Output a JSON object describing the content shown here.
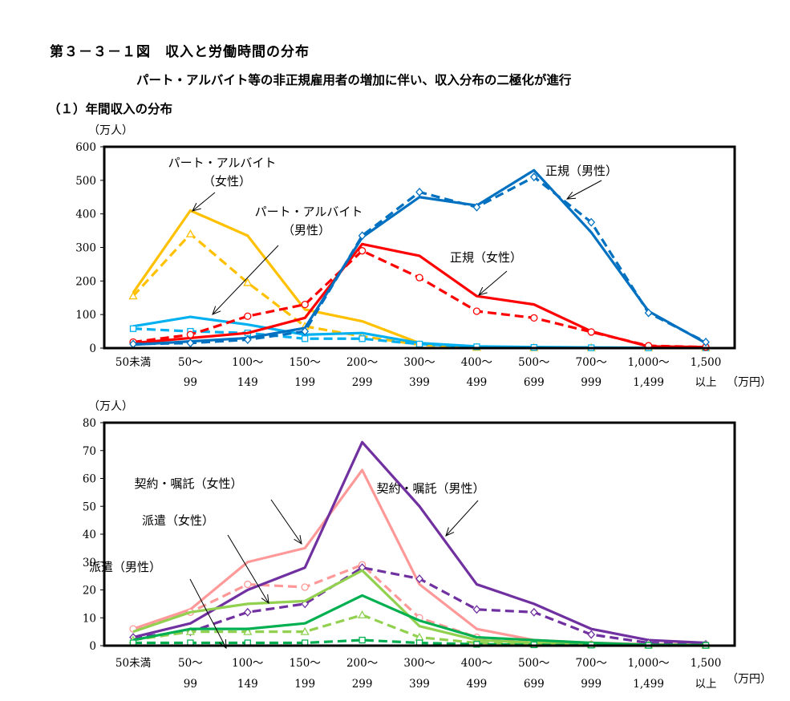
{
  "header": {
    "figure_title": "第３－３－１図　収入と労働時間の分布",
    "subtitle": "パート・アルバイト等の非正規雇用者の増加に伴い、収入分布の二極化が進行",
    "section_title": "（１）年間収入の分布"
  },
  "x_categories": [
    [
      "50未満",
      ""
    ],
    [
      "50～",
      "99"
    ],
    [
      "100～",
      "149"
    ],
    [
      "150～",
      "199"
    ],
    [
      "200～",
      "299"
    ],
    [
      "300～",
      "399"
    ],
    [
      "400～",
      "499"
    ],
    [
      "500～",
      "699"
    ],
    [
      "700～",
      "999"
    ],
    [
      "1,000～",
      "1,499"
    ],
    [
      "1,500",
      "以上"
    ]
  ],
  "x_unit": "（万円）",
  "chart_data": [
    {
      "type": "line",
      "ylabel": "（万人）",
      "ylim": [
        0,
        600
      ],
      "yticks": [
        0,
        100,
        200,
        300,
        400,
        500,
        600
      ],
      "series": [
        {
          "color": "#FFC000",
          "dashed": false,
          "marker": "none",
          "values": [
            165,
            410,
            335,
            115,
            80,
            15,
            3,
            2,
            1,
            1,
            1
          ]
        },
        {
          "color": "#FFC000",
          "dashed": true,
          "marker": "triangle",
          "values": [
            155,
            340,
            195,
            65,
            35,
            10,
            2,
            1,
            1,
            1,
            1
          ]
        },
        {
          "color": "#00B0F0",
          "dashed": false,
          "marker": "none",
          "values": [
            65,
            93,
            70,
            40,
            45,
            15,
            5,
            3,
            2,
            1,
            1
          ]
        },
        {
          "color": "#00B0F0",
          "dashed": true,
          "marker": "square",
          "values": [
            58,
            50,
            45,
            28,
            28,
            12,
            4,
            2,
            1,
            1,
            1
          ]
        },
        {
          "color": "#FF0000",
          "dashed": false,
          "marker": "none",
          "values": [
            15,
            30,
            45,
            90,
            310,
            275,
            155,
            130,
            50,
            5,
            3
          ]
        },
        {
          "color": "#FF0000",
          "dashed": true,
          "marker": "circle",
          "values": [
            18,
            40,
            95,
            130,
            290,
            210,
            110,
            90,
            48,
            7,
            3
          ]
        },
        {
          "color": "#0070C0",
          "dashed": false,
          "marker": "none",
          "values": [
            10,
            20,
            30,
            60,
            330,
            450,
            425,
            530,
            345,
            110,
            15
          ]
        },
        {
          "color": "#0070C0",
          "dashed": true,
          "marker": "diamond",
          "values": [
            12,
            15,
            25,
            50,
            335,
            465,
            420,
            510,
            375,
            105,
            18
          ]
        }
      ],
      "annotations": [
        {
          "lines": [
            "パート・アルバイト",
            "（女性）"
          ]
        },
        {
          "lines": [
            "パート・アルバイト",
            "（男性）"
          ]
        },
        {
          "lines": [
            "正規（男性）"
          ]
        },
        {
          "lines": [
            "正規（女性）"
          ]
        }
      ]
    },
    {
      "type": "line",
      "ylabel": "（万人）",
      "ylim": [
        0,
        80
      ],
      "yticks": [
        0,
        10,
        20,
        30,
        40,
        50,
        60,
        70,
        80
      ],
      "series": [
        {
          "color": "#FF9999",
          "dashed": false,
          "marker": "none",
          "values": [
            6,
            13,
            30,
            35,
            63,
            22,
            6,
            2,
            1,
            0.5,
            0.5
          ]
        },
        {
          "color": "#FF9999",
          "dashed": true,
          "marker": "circle",
          "values": [
            6,
            12,
            22,
            21,
            29,
            10,
            3,
            1,
            0.5,
            0.5,
            0.3
          ]
        },
        {
          "color": "#7030A0",
          "dashed": false,
          "marker": "none",
          "values": [
            3,
            8,
            20,
            28,
            73,
            50,
            22,
            15,
            6,
            2,
            1
          ]
        },
        {
          "color": "#7030A0",
          "dashed": true,
          "marker": "diamond",
          "values": [
            3,
            5,
            12,
            15,
            28,
            24,
            13,
            12,
            4,
            1,
            0.5
          ]
        },
        {
          "color": "#92D050",
          "dashed": false,
          "marker": "none",
          "values": [
            5,
            12,
            15,
            16,
            27,
            7,
            2,
            1,
            0.5,
            0.3,
            0.2
          ]
        },
        {
          "color": "#92D050",
          "dashed": true,
          "marker": "triangle",
          "values": [
            2,
            5,
            5,
            5,
            11,
            3,
            1,
            0.5,
            0.3,
            0.2,
            0.1
          ]
        },
        {
          "color": "#00B050",
          "dashed": false,
          "marker": "none",
          "values": [
            2,
            6,
            6,
            8,
            18,
            9,
            3,
            2,
            1,
            0.3,
            0.2
          ]
        },
        {
          "color": "#00B050",
          "dashed": true,
          "marker": "square",
          "values": [
            1,
            1,
            1,
            1,
            2,
            1,
            0.5,
            0.3,
            0.2,
            0.1,
            0.1
          ]
        }
      ],
      "annotations": [
        {
          "lines": [
            "契約・嘱託（女性）"
          ]
        },
        {
          "lines": [
            "契約・嘱託（男性）"
          ]
        },
        {
          "lines": [
            "派遣（女性）"
          ]
        },
        {
          "lines": [
            "派遣（男性）"
          ]
        }
      ]
    }
  ]
}
